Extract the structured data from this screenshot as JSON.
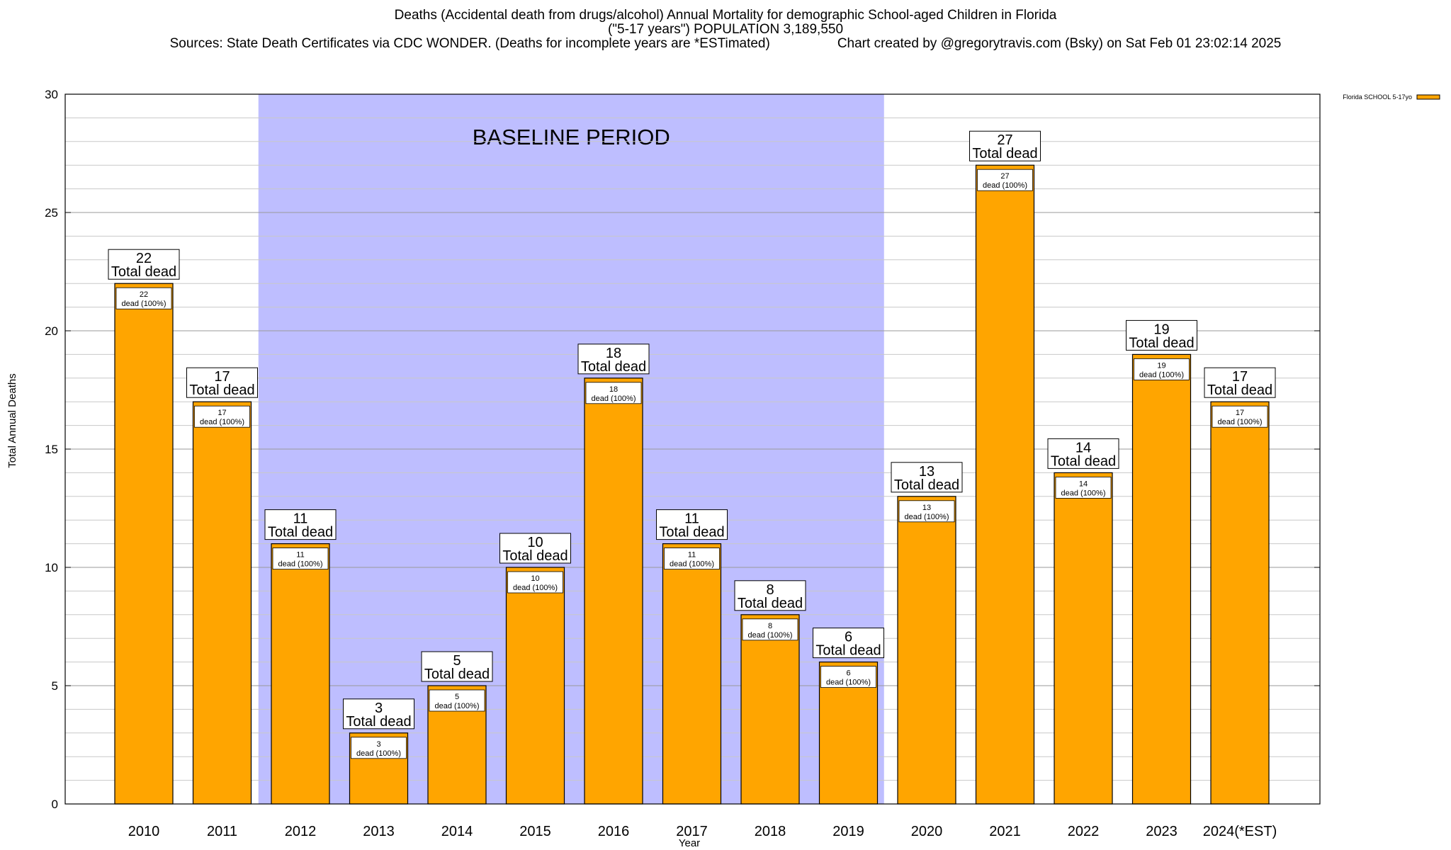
{
  "title": {
    "line1": "Deaths (Accidental death from drugs/alcohol) Annual Mortality for demographic School-aged Children in Florida",
    "line2": "(\"5-17 years\") POPULATION 3,189,550",
    "sources": "Sources: State Death Certificates via CDC WONDER. (Deaths for incomplete years are *ESTimated)",
    "credit": "Chart created by @gregorytravis.com (Bsky) on Sat Feb 01 23:02:14 2025"
  },
  "colors": {
    "bar": "#FFA500",
    "baseline_band": "#BEBEFF",
    "grid": "#C8C8C8",
    "axis": "#000000"
  },
  "chart_data": {
    "type": "bar",
    "xlabel": "Year",
    "ylabel": "Total Annual Deaths",
    "ylim": [
      0,
      30
    ],
    "ytick_step": 5,
    "minor_step": 1,
    "legend": {
      "label": "Florida SCHOOL 5-17yo",
      "position": "top-right"
    },
    "categories": [
      "2010",
      "2011",
      "2012",
      "2013",
      "2014",
      "2015",
      "2016",
      "2017",
      "2018",
      "2019",
      "2020",
      "2021",
      "2022",
      "2023",
      "2024(*EST)"
    ],
    "series": [
      {
        "name": "Florida SCHOOL 5-17yo",
        "values": [
          22,
          17,
          11,
          3,
          5,
          10,
          18,
          11,
          8,
          6,
          13,
          27,
          14,
          19,
          17
        ]
      }
    ],
    "top_label_suffix": "Total dead",
    "inner_label_suffix": "dead (100%)",
    "annotations": [
      {
        "type": "band",
        "text": "BASELINE PERIOD",
        "from_category": "2012",
        "to_category": "2019"
      }
    ]
  }
}
